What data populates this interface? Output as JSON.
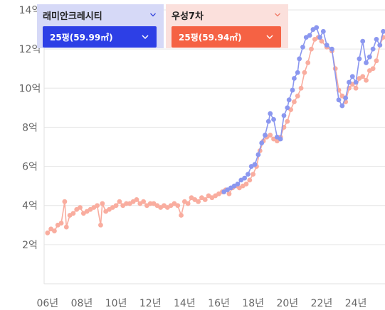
{
  "panels": [
    {
      "name": "래미안크레시티",
      "selected": "25평(59.99㎡)",
      "panel_bg": "#d6d9f7",
      "select_bg": "#2d3fe6",
      "chevron": "#3344dd"
    },
    {
      "name": "우성7차",
      "selected": "25평(59.94㎡)",
      "panel_bg": "#fbe0dc",
      "select_bg": "#f56244",
      "chevron": "#f07a66"
    }
  ],
  "chart_data": {
    "type": "scatter",
    "title": "",
    "xlabel": "",
    "ylabel": "",
    "ylim": [
      0,
      14
    ],
    "xlim": [
      2005.8,
      2025.7
    ],
    "y_tick_labels": [
      {
        "value": 2,
        "label": "2억"
      },
      {
        "value": 4,
        "label": "4억"
      },
      {
        "value": 6,
        "label": "6억"
      },
      {
        "value": 8,
        "label": "8억"
      },
      {
        "value": 10,
        "label": "10억"
      },
      {
        "value": 12,
        "label": "12억"
      },
      {
        "value": 14,
        "label": "14억"
      }
    ],
    "x_tick_labels": [
      {
        "value": 2006,
        "label": "06년"
      },
      {
        "value": 2008,
        "label": "08년"
      },
      {
        "value": 2010,
        "label": "10년"
      },
      {
        "value": 2012,
        "label": "12년"
      },
      {
        "value": 2014,
        "label": "14년"
      },
      {
        "value": 2016,
        "label": "16년"
      },
      {
        "value": 2018,
        "label": "18년"
      },
      {
        "value": 2020,
        "label": "20년"
      },
      {
        "value": 2022,
        "label": "22년"
      },
      {
        "value": 2024,
        "label": "24년"
      }
    ],
    "grid": true,
    "series": [
      {
        "name": "래미안크레시티",
        "color": "#8b97ef",
        "points": [
          [
            2016.3,
            4.7
          ],
          [
            2016.5,
            4.8
          ],
          [
            2016.7,
            4.9
          ],
          [
            2016.9,
            5.0
          ],
          [
            2017.1,
            5.1
          ],
          [
            2017.3,
            5.3
          ],
          [
            2017.5,
            5.4
          ],
          [
            2017.7,
            5.6
          ],
          [
            2017.9,
            6.0
          ],
          [
            2018.1,
            6.1
          ],
          [
            2018.3,
            6.6
          ],
          [
            2018.5,
            7.2
          ],
          [
            2018.7,
            7.6
          ],
          [
            2018.9,
            8.3
          ],
          [
            2019.0,
            8.7
          ],
          [
            2019.2,
            8.4
          ],
          [
            2019.4,
            7.5
          ],
          [
            2019.6,
            7.4
          ],
          [
            2019.8,
            8.6
          ],
          [
            2020.0,
            9.0
          ],
          [
            2020.1,
            9.4
          ],
          [
            2020.3,
            9.9
          ],
          [
            2020.4,
            10.5
          ],
          [
            2020.6,
            10.8
          ],
          [
            2020.7,
            11.5
          ],
          [
            2020.9,
            12.1
          ],
          [
            2021.1,
            12.6
          ],
          [
            2021.3,
            12.7
          ],
          [
            2021.5,
            13.0
          ],
          [
            2021.7,
            13.1
          ],
          [
            2021.9,
            12.6
          ],
          [
            2022.1,
            12.9
          ],
          [
            2022.3,
            12.2
          ],
          [
            2022.6,
            12.0
          ],
          [
            2023.0,
            9.4
          ],
          [
            2023.2,
            9.1
          ],
          [
            2023.4,
            9.5
          ],
          [
            2023.6,
            10.3
          ],
          [
            2023.8,
            10.6
          ],
          [
            2024.0,
            10.3
          ],
          [
            2024.2,
            11.5
          ],
          [
            2024.4,
            12.4
          ],
          [
            2024.6,
            11.3
          ],
          [
            2024.8,
            11.6
          ],
          [
            2025.0,
            12.0
          ],
          [
            2025.2,
            12.5
          ],
          [
            2025.4,
            12.2
          ],
          [
            2025.6,
            12.9
          ]
        ]
      },
      {
        "name": "우성7차",
        "color": "#f9ad9f",
        "points": [
          [
            2006.0,
            2.6
          ],
          [
            2006.2,
            2.8
          ],
          [
            2006.4,
            2.7
          ],
          [
            2006.6,
            3.0
          ],
          [
            2006.8,
            3.1
          ],
          [
            2007.0,
            4.2
          ],
          [
            2007.1,
            2.9
          ],
          [
            2007.3,
            3.5
          ],
          [
            2007.5,
            3.6
          ],
          [
            2007.7,
            3.8
          ],
          [
            2007.9,
            3.9
          ],
          [
            2008.1,
            3.6
          ],
          [
            2008.3,
            3.7
          ],
          [
            2008.5,
            3.8
          ],
          [
            2008.7,
            3.9
          ],
          [
            2008.9,
            4.0
          ],
          [
            2009.1,
            3.0
          ],
          [
            2009.2,
            4.1
          ],
          [
            2009.4,
            3.7
          ],
          [
            2009.6,
            3.8
          ],
          [
            2009.8,
            3.9
          ],
          [
            2010.0,
            4.0
          ],
          [
            2010.2,
            4.2
          ],
          [
            2010.4,
            4.0
          ],
          [
            2010.6,
            4.1
          ],
          [
            2010.8,
            4.1
          ],
          [
            2011.0,
            4.2
          ],
          [
            2011.2,
            4.3
          ],
          [
            2011.4,
            4.1
          ],
          [
            2011.6,
            4.2
          ],
          [
            2011.8,
            4.0
          ],
          [
            2012.0,
            4.1
          ],
          [
            2012.2,
            4.1
          ],
          [
            2012.4,
            4.0
          ],
          [
            2012.6,
            3.9
          ],
          [
            2012.8,
            4.0
          ],
          [
            2013.0,
            3.9
          ],
          [
            2013.2,
            4.0
          ],
          [
            2013.4,
            4.1
          ],
          [
            2013.6,
            4.0
          ],
          [
            2013.8,
            3.5
          ],
          [
            2014.0,
            4.2
          ],
          [
            2014.2,
            4.1
          ],
          [
            2014.4,
            4.4
          ],
          [
            2014.6,
            4.3
          ],
          [
            2014.8,
            4.2
          ],
          [
            2015.0,
            4.4
          ],
          [
            2015.2,
            4.3
          ],
          [
            2015.4,
            4.5
          ],
          [
            2015.6,
            4.4
          ],
          [
            2015.8,
            4.5
          ],
          [
            2016.0,
            4.6
          ],
          [
            2016.2,
            4.7
          ],
          [
            2016.4,
            4.8
          ],
          [
            2016.6,
            4.6
          ],
          [
            2016.8,
            4.9
          ],
          [
            2017.0,
            5.0
          ],
          [
            2017.2,
            4.9
          ],
          [
            2017.4,
            5.0
          ],
          [
            2017.6,
            5.1
          ],
          [
            2017.8,
            5.3
          ],
          [
            2018.0,
            5.6
          ],
          [
            2018.2,
            6.0
          ],
          [
            2018.4,
            6.8
          ],
          [
            2018.6,
            7.3
          ],
          [
            2018.8,
            7.5
          ],
          [
            2019.0,
            7.6
          ],
          [
            2019.2,
            7.4
          ],
          [
            2019.4,
            7.3
          ],
          [
            2019.6,
            7.5
          ],
          [
            2019.8,
            8.0
          ],
          [
            2020.0,
            8.3
          ],
          [
            2020.2,
            8.9
          ],
          [
            2020.4,
            9.3
          ],
          [
            2020.6,
            9.6
          ],
          [
            2020.8,
            10.0
          ],
          [
            2021.0,
            10.8
          ],
          [
            2021.2,
            11.3
          ],
          [
            2021.4,
            12.0
          ],
          [
            2021.6,
            12.5
          ],
          [
            2021.8,
            12.6
          ],
          [
            2022.0,
            12.4
          ],
          [
            2022.3,
            12.1
          ],
          [
            2022.6,
            11.9
          ],
          [
            2022.8,
            11.0
          ],
          [
            2023.0,
            9.9
          ],
          [
            2023.2,
            9.6
          ],
          [
            2023.4,
            9.3
          ],
          [
            2023.6,
            10.0
          ],
          [
            2023.8,
            10.2
          ],
          [
            2024.0,
            10.0
          ],
          [
            2024.2,
            10.5
          ],
          [
            2024.4,
            10.6
          ],
          [
            2024.6,
            10.4
          ],
          [
            2024.8,
            10.9
          ],
          [
            2025.0,
            11.0
          ],
          [
            2025.2,
            11.4
          ],
          [
            2025.4,
            12.2
          ],
          [
            2025.6,
            12.6
          ]
        ]
      }
    ]
  }
}
